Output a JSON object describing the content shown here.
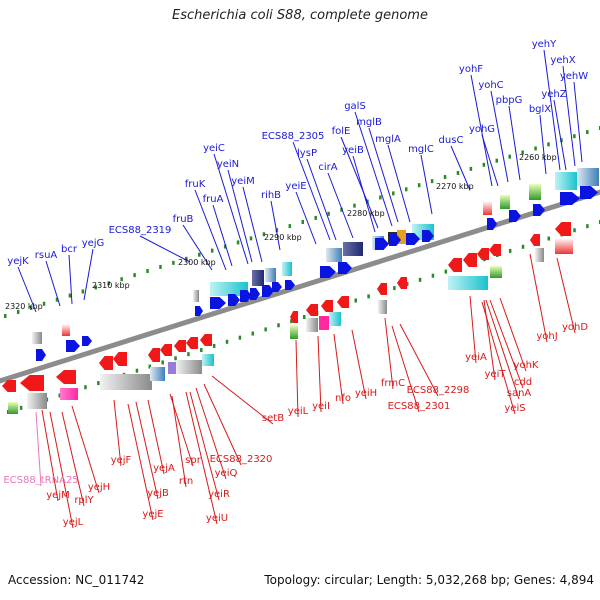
{
  "title": "Escherichia coli S88, complete genome",
  "footer": {
    "accession": "Accession: NC_011742",
    "summary": "Topology: circular; Length: 5,032,268 bp; Genes: 4,894"
  },
  "colors": {
    "forward_label": "#1a1ad8",
    "reverse_label": "#d81a1a",
    "trna_label": "#e878b8",
    "backbone": "#8c8c8c",
    "ticks": "#2a8a2a"
  },
  "scale_labels": [
    "2260 kbp",
    "2270 kbp",
    "2280 kbp",
    "2290 kbp",
    "2300 kbp",
    "2310 kbp",
    "2320 kbp"
  ],
  "forward_genes": [
    "yehY",
    "yehX",
    "yehW",
    "yohF",
    "yehZ",
    "yohC",
    "bglX",
    "pbpG",
    "galS",
    "mglB",
    "yohG",
    "ECS88_2305",
    "folE",
    "mglA",
    "dusC",
    "yeiC",
    "lysP",
    "yeiB",
    "mglC",
    "yeiN",
    "fruK",
    "cirA",
    "yeiM",
    "yeiE",
    "fruA",
    "rihB",
    "fruB",
    "ECS88_2319",
    "yejK",
    "rsuA",
    "bcr",
    "yejG"
  ],
  "reverse_genes": [
    "yohD",
    "yohJ",
    "yeiA",
    "yohK",
    "yeiT",
    "cdd",
    "sanA",
    "yeiS",
    "frmC",
    "ECS88_2298",
    "ECS88_2301",
    "yeiH",
    "nfo",
    "yeiI",
    "yeiL",
    "setB",
    "ECS88_2320",
    "spr",
    "yeiQ",
    "yejA",
    "rtn",
    "yeiR",
    "yejB",
    "yejF",
    "yeiU",
    "yejE",
    "yejH",
    "yejM",
    "rplY",
    "yejL"
  ],
  "trna_genes": [
    "ECS88_tRNA25"
  ]
}
